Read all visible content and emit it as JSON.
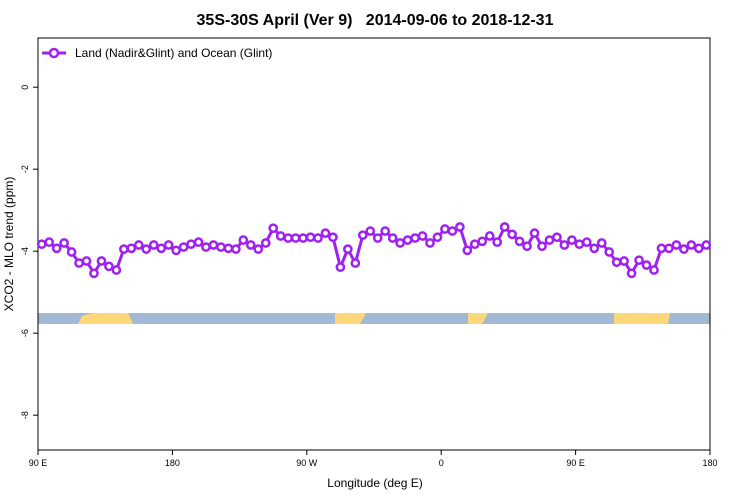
{
  "chart_data": {
    "type": "line",
    "title": "35S-30S April (Ver 9)   2014-09-06 to 2018-12-31",
    "xlabel": "Longitude (deg E)",
    "ylabel": "XCO2 - MLO trend (ppm)",
    "xlim": [
      90,
      540
    ],
    "ylim": [
      1.2,
      -8.85
    ],
    "xticks": [
      {
        "value": 90,
        "label": "90 E"
      },
      180,
      {
        "value": 270,
        "label": "90 W"
      },
      {
        "value": 360,
        "label": "0"
      },
      {
        "value": 450,
        "label": "90 E"
      },
      {
        "value": 540,
        "label": "180"
      }
    ],
    "yticks": [
      0,
      -2,
      -4,
      -6,
      -8
    ],
    "legend": "top-left",
    "x": [
      92.5,
      97.5,
      102.5,
      107.5,
      112.5,
      117.5,
      122.5,
      127.5,
      132.5,
      137.5,
      142.5,
      147.5,
      152.5,
      157.5,
      162.5,
      167.5,
      172.5,
      177.5,
      182.5,
      187.5,
      192.5,
      197.5,
      202.5,
      207.5,
      212.5,
      217.5,
      222.5,
      227.5,
      232.5,
      237.5,
      242.5,
      247.5,
      252.5,
      257.5,
      262.5,
      267.5,
      272.5,
      277.5,
      282.5,
      287.5,
      292.5,
      297.5,
      302.5,
      307.5,
      312.5,
      317.5,
      322.5,
      327.5,
      332.5,
      337.5,
      342.5,
      347.5,
      352.5,
      357.5,
      362.5,
      367.5,
      372.5,
      377.5,
      382.5,
      387.5,
      392.5,
      397.5,
      402.5,
      407.5,
      412.5,
      417.5,
      422.5,
      427.5,
      432.5,
      437.5,
      442.5,
      447.5,
      452.5,
      457.5,
      462.5,
      467.5,
      472.5,
      477.5,
      482.5,
      487.5,
      492.5,
      497.5,
      502.5,
      507.5,
      512.5,
      517.5,
      522.5,
      527.5,
      532.5,
      537.5
    ],
    "series": [
      {
        "name": "Land (Nadir&Glint) and Ocean (Glint)",
        "color": "#a020f0",
        "values": [
          -3.83,
          -3.78,
          -3.93,
          -3.8,
          -4.02,
          -4.29,
          -4.24,
          -4.54,
          -4.24,
          -4.37,
          -4.46,
          -3.95,
          -3.93,
          -3.85,
          -3.95,
          -3.85,
          -3.93,
          -3.85,
          -3.98,
          -3.9,
          -3.83,
          -3.78,
          -3.9,
          -3.85,
          -3.9,
          -3.93,
          -3.95,
          -3.73,
          -3.85,
          -3.95,
          -3.8,
          -3.44,
          -3.63,
          -3.68,
          -3.68,
          -3.68,
          -3.66,
          -3.68,
          -3.56,
          -3.66,
          -4.39,
          -3.95,
          -4.29,
          -3.61,
          -3.51,
          -3.68,
          -3.51,
          -3.68,
          -3.8,
          -3.73,
          -3.68,
          -3.63,
          -3.8,
          -3.66,
          -3.46,
          -3.51,
          -3.41,
          -3.98,
          -3.83,
          -3.76,
          -3.63,
          -3.78,
          -3.41,
          -3.59,
          -3.76,
          -3.88,
          -3.56,
          -3.88,
          -3.73,
          -3.66,
          -3.85,
          -3.73,
          -3.83,
          -3.78,
          -3.93,
          -3.8,
          -4.02,
          -4.27,
          -4.24,
          -4.54,
          -4.22,
          -4.34,
          -4.46,
          -3.93,
          -3.93,
          -3.85,
          -3.95,
          -3.85,
          -3.93,
          -3.85
        ]
      }
    ]
  }
}
